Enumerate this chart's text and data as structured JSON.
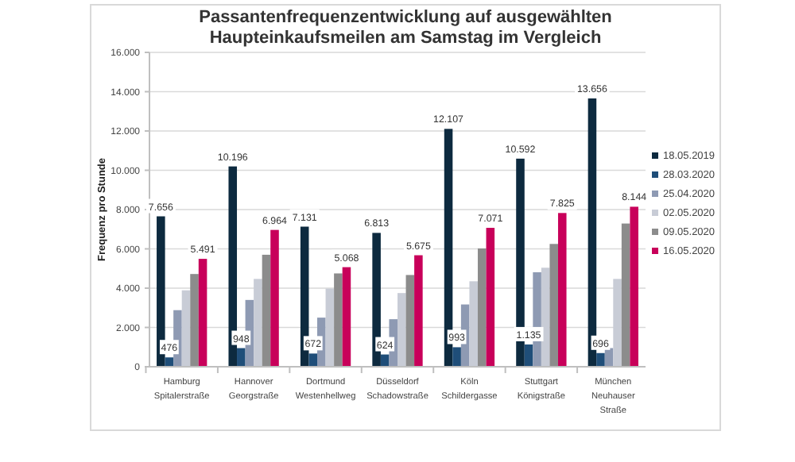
{
  "chart_data": {
    "type": "bar",
    "title": "Passantenfrequenzentwicklung auf ausgewählten\nHaupteinkaufsmeilen am Samstag im Vergleich",
    "ylabel": "Frequenz pro Stunde",
    "categories": [
      "Hamburg\nSpitalerstraße",
      "Hannover\nGeorgstraße",
      "Dortmund\nWestenhellweg",
      "Düsseldorf\nSchadowstraße",
      "Köln\nSchildergasse",
      "Stuttgart\nKönigstraße",
      "München\nNeuhauser\nStraße"
    ],
    "series": [
      {
        "name": "18.05.2019",
        "color": "#0d2a3f",
        "values": [
          7656,
          10196,
          7131,
          6813,
          12107,
          10592,
          13656
        ],
        "value_labels": [
          "7.656",
          "10.196",
          "7.131",
          "6.813",
          "12.107",
          "10.592",
          "13.656"
        ]
      },
      {
        "name": "28.03.2020",
        "color": "#1f4e79",
        "values": [
          476,
          948,
          672,
          624,
          993,
          1135,
          696
        ],
        "value_labels": [
          "476",
          "948",
          "672",
          "624",
          "993",
          "1.135",
          "696"
        ]
      },
      {
        "name": "25.04.2020",
        "color": "#8e9ab3",
        "values": [
          2880,
          3400,
          2500,
          2420,
          3170,
          4810,
          950
        ]
      },
      {
        "name": "02.05.2020",
        "color": "#c8ccd6",
        "values": [
          3890,
          4470,
          3980,
          3750,
          4350,
          5040,
          4470
        ]
      },
      {
        "name": "09.05.2020",
        "color": "#8c8c8c",
        "values": [
          4720,
          5700,
          4750,
          4670,
          6020,
          6250,
          7290
        ]
      },
      {
        "name": "16.05.2020",
        "color": "#c8005a",
        "values": [
          5491,
          6964,
          5068,
          5675,
          7071,
          7825,
          8144
        ],
        "value_labels": [
          "5.491",
          "6.964",
          "5.068",
          "5.675",
          "7.071",
          "7.825",
          "8.144"
        ]
      }
    ],
    "ylim": [
      0,
      16000
    ],
    "yticks": [
      {
        "value": 0,
        "label": "0"
      },
      {
        "value": 2000,
        "label": "2.000"
      },
      {
        "value": 4000,
        "label": "4.000"
      },
      {
        "value": 6000,
        "label": "6.000"
      },
      {
        "value": 8000,
        "label": "8.000"
      },
      {
        "value": 10000,
        "label": "10.000"
      },
      {
        "value": 12000,
        "label": "12.000"
      },
      {
        "value": 14000,
        "label": "14.000"
      },
      {
        "value": 16000,
        "label": "16.000"
      }
    ],
    "grid": "y",
    "legend": "right"
  }
}
